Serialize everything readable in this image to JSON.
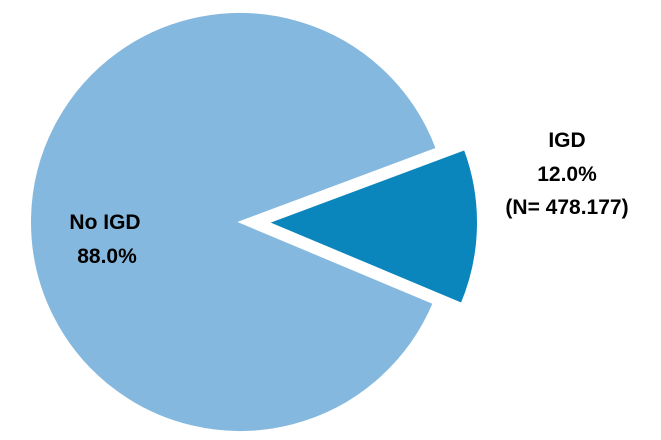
{
  "chart_data": {
    "type": "pie",
    "slices": [
      {
        "label": "No IGD",
        "value": 88.0,
        "value_text": "88.0%",
        "color": "#85b8de",
        "exploded": false
      },
      {
        "label": "IGD",
        "value": 12.0,
        "value_text": "12.0%",
        "note": "(N= 478.177)",
        "color": "#0a86bd",
        "exploded": true
      }
    ],
    "legend": "none",
    "start": "exploded slice centered at right"
  }
}
